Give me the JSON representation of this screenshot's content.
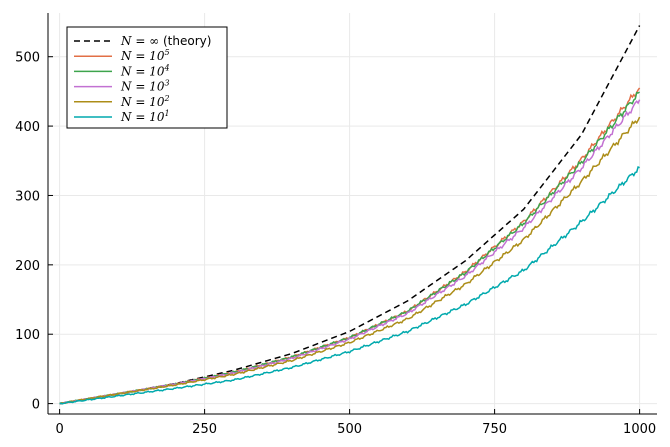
{
  "chart_data": {
    "type": "line",
    "xlim": [
      -20,
      1030
    ],
    "ylim": [
      -15,
      563
    ],
    "x_ticks": [
      0,
      250,
      500,
      750,
      1000
    ],
    "y_ticks": [
      0,
      100,
      200,
      300,
      400,
      500
    ],
    "x_tick_labels": [
      "0",
      "250",
      "500",
      "750",
      "1000"
    ],
    "y_tick_labels": [
      "0",
      "100",
      "200",
      "300",
      "400",
      "500"
    ],
    "grid": true,
    "legend_position": "top-left",
    "series": [
      {
        "name": "N = ∞ (theory)",
        "color": "#000000",
        "dashed": true,
        "x": [
          0,
          100,
          200,
          300,
          400,
          500,
          600,
          700,
          800,
          900,
          1000
        ],
        "y": [
          0,
          14,
          29,
          48,
          72,
          104,
          148,
          206,
          280,
          388,
          545
        ]
      },
      {
        "name": "N = 10^5",
        "color": "#e26f46",
        "dashed": false,
        "x": [
          0,
          100,
          200,
          300,
          400,
          500,
          600,
          700,
          800,
          900,
          1000
        ],
        "y": [
          0,
          14,
          28,
          45,
          67,
          95,
          133,
          190,
          262,
          352,
          455
        ]
      },
      {
        "name": "N = 10^4",
        "color": "#3da44d",
        "dashed": false,
        "x": [
          0,
          100,
          200,
          300,
          400,
          500,
          600,
          700,
          800,
          900,
          1000
        ],
        "y": [
          0,
          14,
          28,
          45,
          67,
          95,
          133,
          189,
          260,
          348,
          449
        ]
      },
      {
        "name": "N = 10^3",
        "color": "#c271d2",
        "dashed": false,
        "x": [
          0,
          100,
          200,
          300,
          400,
          500,
          600,
          700,
          800,
          900,
          1000
        ],
        "y": [
          0,
          14,
          28,
          44,
          65,
          93,
          130,
          184,
          253,
          340,
          438
        ]
      },
      {
        "name": "N = 10^2",
        "color": "#ac8d18",
        "dashed": false,
        "x": [
          0,
          100,
          200,
          300,
          400,
          500,
          600,
          700,
          800,
          900,
          1000
        ],
        "y": [
          0,
          14,
          27,
          42,
          62,
          88,
          122,
          172,
          236,
          320,
          413
        ]
      },
      {
        "name": "N = 10^1",
        "color": "#00a9ad",
        "dashed": false,
        "x": [
          0,
          100,
          200,
          300,
          400,
          500,
          600,
          700,
          800,
          900,
          1000
        ],
        "y": [
          0,
          11,
          22,
          34,
          52,
          75,
          104,
          143,
          192,
          262,
          340
        ]
      }
    ]
  },
  "legend": [
    {
      "base": "N = ∞",
      "suffix": " (theory)",
      "exp": ""
    },
    {
      "base": "N = 10",
      "suffix": "",
      "exp": "5"
    },
    {
      "base": "N = 10",
      "suffix": "",
      "exp": "4"
    },
    {
      "base": "N = 10",
      "suffix": "",
      "exp": "3"
    },
    {
      "base": "N = 10",
      "suffix": "",
      "exp": "2"
    },
    {
      "base": "N = 10",
      "suffix": "",
      "exp": "1"
    }
  ]
}
